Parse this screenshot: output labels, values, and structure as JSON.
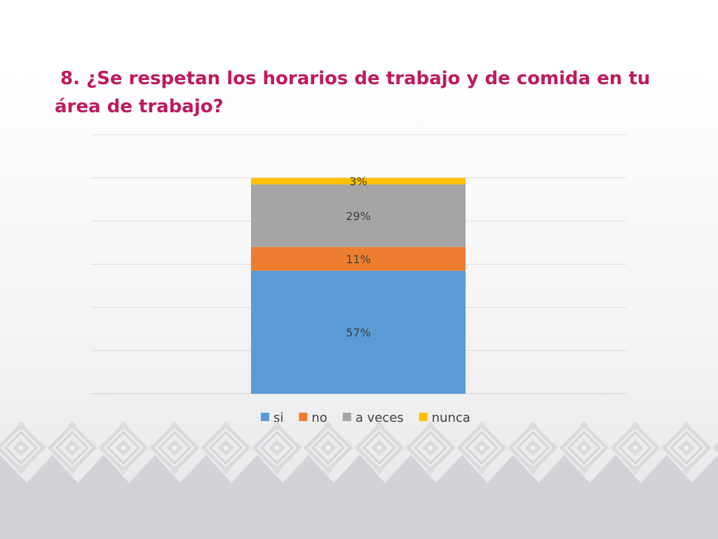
{
  "slide": {
    "title": "8. ¿Se respetan los horarios de trabajo y de comida en tu área de trabajo?"
  },
  "chart_data": {
    "type": "bar",
    "stacked": true,
    "categories": [
      ""
    ],
    "series": [
      {
        "name": "si",
        "values": [
          57
        ],
        "label": "57%",
        "color": "#5b9bd5"
      },
      {
        "name": "no",
        "values": [
          11
        ],
        "label": "11%",
        "color": "#ed7d31"
      },
      {
        "name": "a veces",
        "values": [
          29
        ],
        "label": "29%",
        "color": "#a5a5a5"
      },
      {
        "name": "nunca",
        "values": [
          3
        ],
        "label": "3%",
        "color": "#ffc000"
      }
    ],
    "ylim": [
      0,
      120
    ],
    "grid": true,
    "legend": "bottom"
  }
}
